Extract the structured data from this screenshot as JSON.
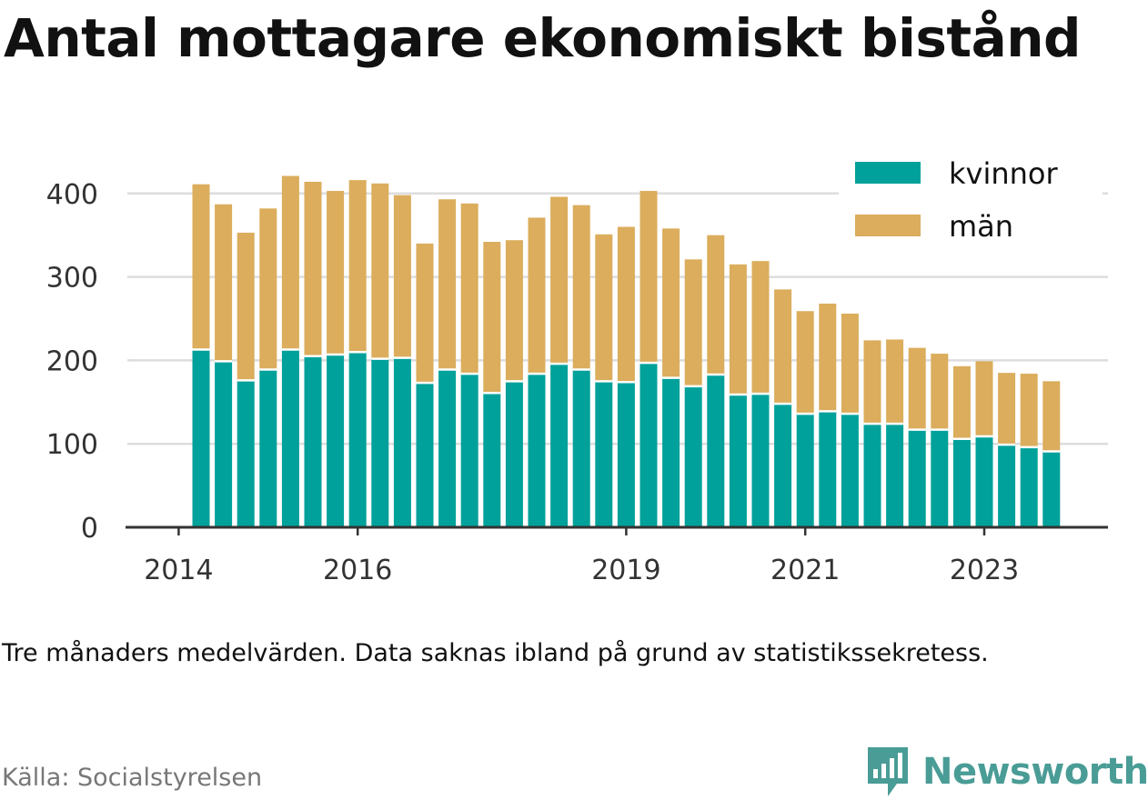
{
  "title": "Antal mottagare ekonomiskt bistånd",
  "note": "Tre månaders medelvärden. Data saknas ibland på grund av statistikssekretess.",
  "source": "Källa: Socialstyrelsen",
  "brand": {
    "name": "Newsworthy",
    "logo_icon": "bar-chart-flag-icon",
    "color": "#4a9c96"
  },
  "chart_data": {
    "type": "bar",
    "stacked": true,
    "ylim": [
      0,
      430
    ],
    "yticks": [
      0,
      100,
      200,
      300,
      400
    ],
    "xticks": [
      {
        "label": "2014",
        "index": -1
      },
      {
        "label": "2016",
        "index": 7
      },
      {
        "label": "2019",
        "index": 19
      },
      {
        "label": "2021",
        "index": 27
      },
      {
        "label": "2023",
        "index": 35
      }
    ],
    "grid": true,
    "legend_position": "top-right",
    "series": [
      {
        "name": "kvinnor",
        "color": "#00a19a",
        "values": [
          213,
          199,
          176,
          189,
          213,
          205,
          207,
          210,
          202,
          203,
          173,
          189,
          184,
          161,
          175,
          184,
          196,
          189,
          175,
          174,
          197,
          179,
          169,
          183,
          159,
          160,
          148,
          136,
          139,
          136,
          124,
          124,
          117,
          117,
          106,
          109,
          99,
          96,
          91
        ]
      },
      {
        "name": "män",
        "color": "#dbad5c",
        "values": [
          198,
          188,
          177,
          193,
          208,
          209,
          196,
          206,
          210,
          195,
          167,
          204,
          204,
          181,
          169,
          187,
          200,
          197,
          176,
          186,
          206,
          179,
          152,
          167,
          156,
          159,
          137,
          123,
          129,
          120,
          100,
          101,
          98,
          91,
          87,
          90,
          86,
          88,
          84
        ]
      }
    ]
  }
}
